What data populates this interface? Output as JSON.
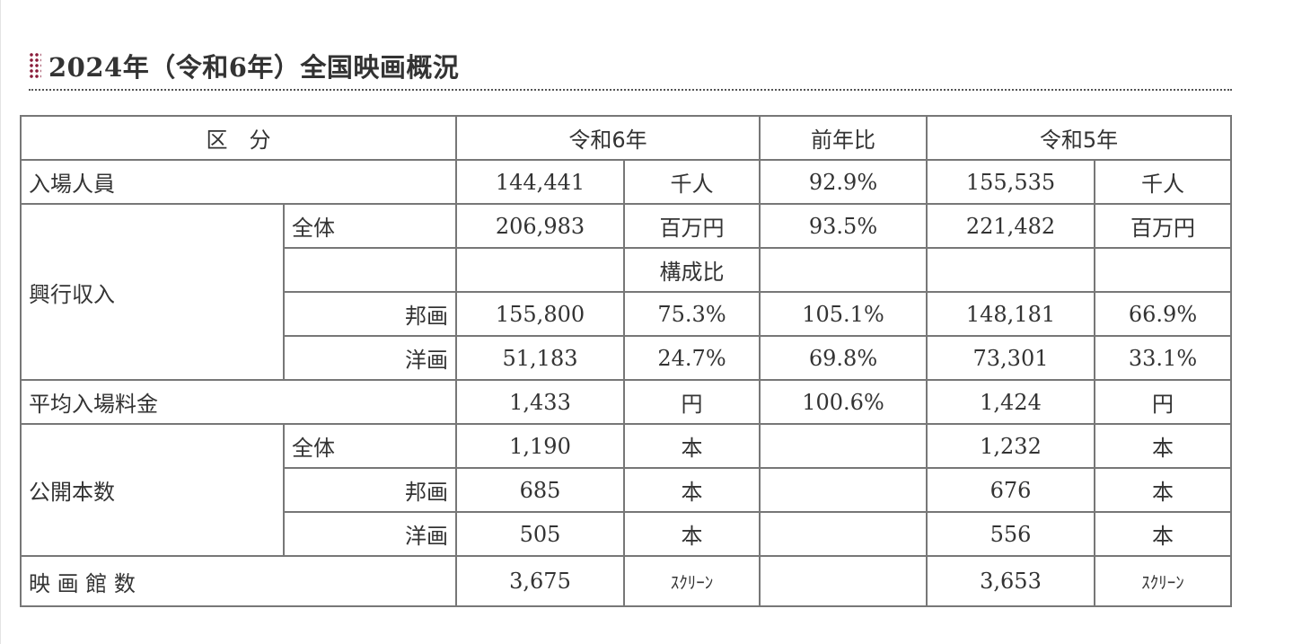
{
  "title": "2024年（令和6年）全国映画概況",
  "header": {
    "category": "区　分",
    "r6": "令和6年",
    "yoy": "前年比",
    "r5": "令和5年"
  },
  "rows": {
    "attendance": {
      "label": "入場人員",
      "r6": "144,441",
      "r6_unit": "千人",
      "yoy": "92.9%",
      "r5": "155,535",
      "r5_unit": "千人"
    },
    "box_office": {
      "label": "興行収入",
      "total": {
        "label": "全体",
        "r6": "206,983",
        "r6_unit": "百万円",
        "yoy": "93.5%",
        "r5": "221,482",
        "r5_unit": "百万円"
      },
      "ratio_label": "構成比",
      "domestic": {
        "label": "邦画",
        "r6": "155,800",
        "r6_ratio": "75.3%",
        "yoy": "105.1%",
        "r5": "148,181",
        "r5_ratio": "66.9%"
      },
      "foreign": {
        "label": "洋画",
        "r6": "51,183",
        "r6_ratio": "24.7%",
        "yoy": "69.8%",
        "r5": "73,301",
        "r5_ratio": "33.1%"
      }
    },
    "avg_price": {
      "label": "平均入場料金",
      "r6": "1,433",
      "r6_unit": "円",
      "yoy": "100.6%",
      "r5": "1,424",
      "r5_unit": "円"
    },
    "releases": {
      "label": "公開本数",
      "total": {
        "label": "全体",
        "r6": "1,190",
        "r6_unit": "本",
        "r5": "1,232",
        "r5_unit": "本"
      },
      "domestic": {
        "label": "邦画",
        "r6": "685",
        "r6_unit": "本",
        "r5": "676",
        "r5_unit": "本"
      },
      "foreign": {
        "label": "洋画",
        "r6": "505",
        "r6_unit": "本",
        "r5": "556",
        "r5_unit": "本"
      }
    },
    "screens": {
      "label": "映 画 館 数",
      "r6": "3,675",
      "r6_unit": "ｽｸﾘｰﾝ",
      "r5": "3,653",
      "r5_unit": "ｽｸﾘｰﾝ"
    }
  }
}
